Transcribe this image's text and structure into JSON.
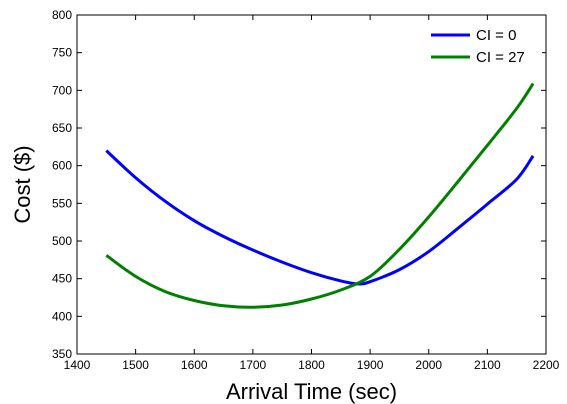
{
  "chart_data": {
    "type": "line",
    "title": "",
    "xlabel": "Arrival Time (sec)",
    "ylabel": "Cost ($)",
    "xlim": [
      1400,
      2200
    ],
    "ylim": [
      350,
      800
    ],
    "xticks": [
      1400,
      1500,
      1600,
      1700,
      1800,
      1900,
      2000,
      2100,
      2200
    ],
    "yticks": [
      350,
      400,
      450,
      500,
      550,
      600,
      650,
      700,
      750,
      800
    ],
    "grid": false,
    "legend_position": "top-right",
    "series": [
      {
        "name": "CI = 0",
        "color": "#0000ff",
        "x": [
          1450,
          1500,
          1550,
          1600,
          1650,
          1700,
          1750,
          1800,
          1850,
          1880,
          1900,
          1950,
          2000,
          2050,
          2100,
          2150,
          2178
        ],
        "y": [
          620,
          584,
          553,
          527,
          506,
          488,
          472,
          458,
          447,
          443,
          446,
          462,
          486,
          517,
          549,
          582,
          613
        ]
      },
      {
        "name": "CI = 27",
        "color": "#008000",
        "x": [
          1450,
          1500,
          1550,
          1600,
          1650,
          1700,
          1750,
          1800,
          1850,
          1900,
          1950,
          2000,
          2050,
          2100,
          2150,
          2178
        ],
        "y": [
          481,
          453,
          433,
          421,
          414,
          412,
          415,
          423,
          435,
          453,
          489,
          532,
          579,
          627,
          676,
          709
        ]
      }
    ]
  }
}
